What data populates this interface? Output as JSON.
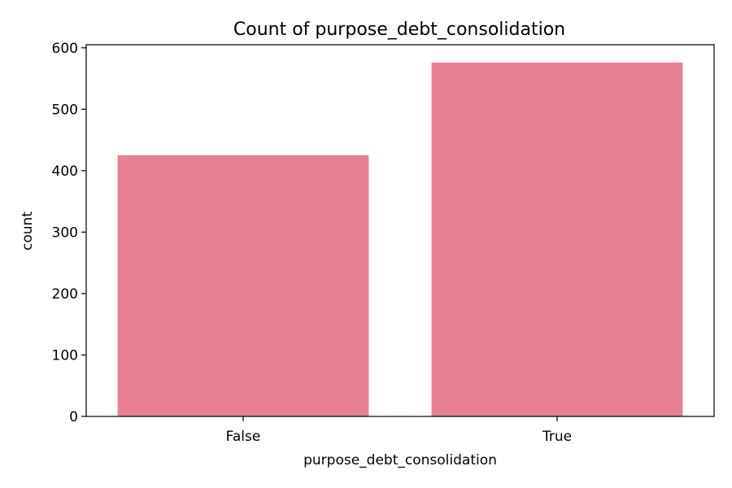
{
  "chart_data": {
    "type": "bar",
    "title": "Count of purpose_debt_consolidation",
    "xlabel": "purpose_debt_consolidation",
    "ylabel": "count",
    "categories": [
      "False",
      "True"
    ],
    "values": [
      425,
      576
    ],
    "ylim": [
      0,
      605
    ],
    "yticks": [
      0,
      100,
      200,
      300,
      400,
      500,
      600
    ],
    "grid": false,
    "bar_color": "#e78093"
  }
}
